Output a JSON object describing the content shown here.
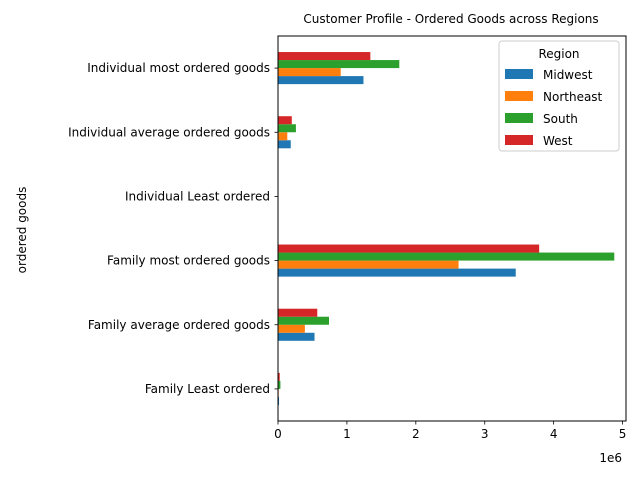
{
  "chart_data": {
    "type": "bar",
    "orientation": "horizontal",
    "title": "Customer Profile - Ordered Goods across Regions",
    "ylabel": "ordered goods",
    "xlabel": "",
    "x_offset_label": "1e6",
    "xlim": [
      0,
      5050000
    ],
    "x_ticks": [
      0,
      1000000,
      2000000,
      3000000,
      4000000,
      5000000
    ],
    "x_tick_labels": [
      "0",
      "1",
      "2",
      "3",
      "4",
      "5"
    ],
    "categories": [
      "Family Least ordered",
      "Family average ordered goods",
      "Family most ordered goods",
      "Individual Least ordered",
      "Individual average ordered goods",
      "Individual most ordered goods"
    ],
    "series": [
      {
        "name": "Midwest",
        "color": "#1f77b4",
        "values": [
          15000,
          530000,
          3450000,
          2000,
          185000,
          1240000
        ]
      },
      {
        "name": "Northeast",
        "color": "#ff7f0e",
        "values": [
          10000,
          390000,
          2620000,
          1500,
          135000,
          910000
        ]
      },
      {
        "name": "South",
        "color": "#2ca02c",
        "values": [
          35000,
          740000,
          4880000,
          3000,
          260000,
          1760000
        ]
      },
      {
        "name": "West",
        "color": "#d62728",
        "values": [
          25000,
          570000,
          3790000,
          2500,
          200000,
          1340000
        ]
      }
    ],
    "legend": {
      "title": "Region",
      "position": "top-right"
    },
    "grid": false
  }
}
